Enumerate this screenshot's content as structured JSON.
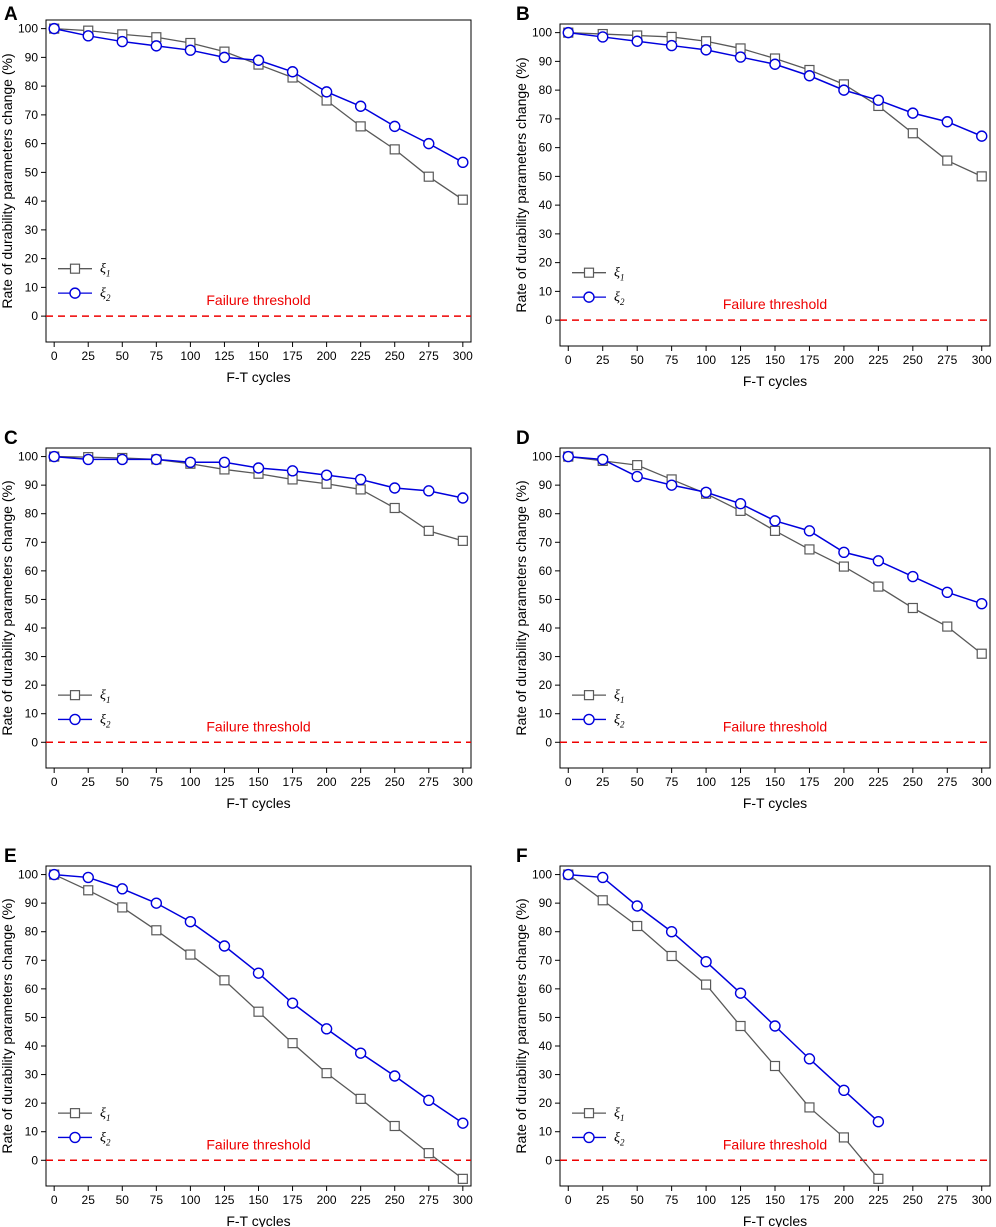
{
  "figure": {
    "title": ""
  },
  "colors": {
    "xi1": "#595959",
    "xi2": "#0000dd",
    "threshold": "#ee0000",
    "axis": "#000000"
  },
  "chart_data": [
    {
      "panel": "A",
      "type": "line",
      "xlabel": "F-T cycles",
      "ylabel": "Rate of durability parameters change (%)",
      "xlim": [
        -6,
        306
      ],
      "ylim": [
        -9,
        103
      ],
      "xticks": [
        0,
        25,
        50,
        75,
        100,
        125,
        150,
        175,
        200,
        225,
        250,
        275,
        300
      ],
      "yticks": [
        0,
        10,
        20,
        30,
        40,
        50,
        60,
        70,
        80,
        90,
        100
      ],
      "threshold": {
        "label": "Failure threshold",
        "value": 0
      },
      "legend": {
        "location": "lower-left",
        "entries": [
          "ξ1",
          "ξ2"
        ]
      },
      "series": [
        {
          "name": "ξ1",
          "marker": "square",
          "x": [
            0,
            25,
            50,
            75,
            100,
            125,
            150,
            175,
            200,
            225,
            250,
            275,
            300
          ],
          "values": [
            100,
            99.3,
            98,
            97,
            95,
            92,
            87.5,
            83,
            75,
            66,
            58,
            48.5,
            40.5
          ]
        },
        {
          "name": "ξ2",
          "marker": "circle",
          "x": [
            0,
            25,
            50,
            75,
            100,
            125,
            150,
            175,
            200,
            225,
            250,
            275,
            300
          ],
          "values": [
            100,
            97.5,
            95.5,
            94,
            92.5,
            90,
            89,
            85,
            78,
            73,
            66,
            60,
            53.5
          ]
        }
      ]
    },
    {
      "panel": "B",
      "type": "line",
      "xlabel": "F-T cycles",
      "ylabel": "Rate of durability parameters change (%)",
      "xlim": [
        -6,
        306
      ],
      "ylim": [
        -9,
        103
      ],
      "xticks": [
        0,
        25,
        50,
        75,
        100,
        125,
        150,
        175,
        200,
        225,
        250,
        275,
        300
      ],
      "yticks": [
        0,
        10,
        20,
        30,
        40,
        50,
        60,
        70,
        80,
        90,
        100
      ],
      "threshold": {
        "label": "Failure threshold",
        "value": 0
      },
      "legend": {
        "location": "lower-left",
        "entries": [
          "ξ1",
          "ξ2"
        ]
      },
      "series": [
        {
          "name": "ξ1",
          "marker": "square",
          "x": [
            0,
            25,
            50,
            75,
            100,
            125,
            150,
            175,
            200,
            225,
            250,
            275,
            300
          ],
          "values": [
            100,
            99.5,
            99,
            98.5,
            97,
            94.5,
            91,
            87,
            82,
            74.5,
            65,
            55.5,
            50
          ]
        },
        {
          "name": "ξ2",
          "marker": "circle",
          "x": [
            0,
            25,
            50,
            75,
            100,
            125,
            150,
            175,
            200,
            225,
            250,
            275,
            300
          ],
          "values": [
            100,
            98.5,
            97,
            95.5,
            94,
            91.5,
            89,
            85,
            80,
            76.5,
            72,
            69,
            64
          ]
        }
      ]
    },
    {
      "panel": "C",
      "type": "line",
      "xlabel": "F-T cycles",
      "ylabel": "Rate of durability parameters change (%)",
      "xlim": [
        -6,
        306
      ],
      "ylim": [
        -9,
        103
      ],
      "xticks": [
        0,
        25,
        50,
        75,
        100,
        125,
        150,
        175,
        200,
        225,
        250,
        275,
        300
      ],
      "yticks": [
        0,
        10,
        20,
        30,
        40,
        50,
        60,
        70,
        80,
        90,
        100
      ],
      "threshold": {
        "label": "Failure threshold",
        "value": 0
      },
      "legend": {
        "location": "lower-left",
        "entries": [
          "ξ1",
          "ξ2"
        ]
      },
      "series": [
        {
          "name": "ξ1",
          "marker": "square",
          "x": [
            0,
            25,
            50,
            75,
            100,
            125,
            150,
            175,
            200,
            225,
            250,
            275,
            300
          ],
          "values": [
            100,
            99.8,
            99.5,
            99,
            97.5,
            95.5,
            94,
            92,
            90.5,
            88.5,
            82,
            74,
            70.5
          ]
        },
        {
          "name": "ξ2",
          "marker": "circle",
          "x": [
            0,
            25,
            50,
            75,
            100,
            125,
            150,
            175,
            200,
            225,
            250,
            275,
            300
          ],
          "values": [
            100,
            99,
            99,
            99,
            98,
            98,
            96,
            95,
            93.5,
            92,
            89,
            88,
            85.5
          ]
        }
      ]
    },
    {
      "panel": "D",
      "type": "line",
      "xlabel": "F-T cycles",
      "ylabel": "Rate of durability parameters change (%)",
      "xlim": [
        -6,
        306
      ],
      "ylim": [
        -9,
        103
      ],
      "xticks": [
        0,
        25,
        50,
        75,
        100,
        125,
        150,
        175,
        200,
        225,
        250,
        275,
        300
      ],
      "yticks": [
        0,
        10,
        20,
        30,
        40,
        50,
        60,
        70,
        80,
        90,
        100
      ],
      "threshold": {
        "label": "Failure threshold",
        "value": 0
      },
      "legend": {
        "location": "lower-left",
        "entries": [
          "ξ1",
          "ξ2"
        ]
      },
      "series": [
        {
          "name": "ξ1",
          "marker": "square",
          "x": [
            0,
            25,
            50,
            75,
            100,
            125,
            150,
            175,
            200,
            225,
            250,
            275,
            300
          ],
          "values": [
            100,
            98.5,
            97,
            92,
            87,
            81,
            74,
            67.5,
            61.5,
            54.5,
            47,
            40.5,
            31
          ]
        },
        {
          "name": "ξ2",
          "marker": "circle",
          "x": [
            0,
            25,
            50,
            75,
            100,
            125,
            150,
            175,
            200,
            225,
            250,
            275,
            300
          ],
          "values": [
            100,
            99,
            93,
            90,
            87.5,
            83.5,
            77.5,
            74,
            66.5,
            63.5,
            58,
            52.5,
            48.5
          ]
        }
      ]
    },
    {
      "panel": "E",
      "type": "line",
      "xlabel": "F-T cycles",
      "ylabel": "Rate of durability parameters change (%)",
      "xlim": [
        -6,
        306
      ],
      "ylim": [
        -9,
        103
      ],
      "xticks": [
        0,
        25,
        50,
        75,
        100,
        125,
        150,
        175,
        200,
        225,
        250,
        275,
        300
      ],
      "yticks": [
        0,
        10,
        20,
        30,
        40,
        50,
        60,
        70,
        80,
        90,
        100
      ],
      "threshold": {
        "label": "Failure threshold",
        "value": 0
      },
      "legend": {
        "location": "lower-left",
        "entries": [
          "ξ1",
          "ξ2"
        ]
      },
      "series": [
        {
          "name": "ξ1",
          "marker": "square",
          "x": [
            0,
            25,
            50,
            75,
            100,
            125,
            150,
            175,
            200,
            225,
            250,
            275,
            300
          ],
          "values": [
            100,
            94.5,
            88.5,
            80.5,
            72,
            63,
            52,
            41,
            30.5,
            21.5,
            12,
            2.5,
            -6.5
          ]
        },
        {
          "name": "ξ2",
          "marker": "circle",
          "x": [
            0,
            25,
            50,
            75,
            100,
            125,
            150,
            175,
            200,
            225,
            250,
            275,
            300
          ],
          "values": [
            100,
            99,
            95,
            90,
            83.5,
            75,
            65.5,
            55,
            46,
            37.5,
            29.5,
            21,
            13
          ]
        }
      ]
    },
    {
      "panel": "F",
      "type": "line",
      "xlabel": "F-T cycles",
      "ylabel": "Rate of durability parameters change (%)",
      "xlim": [
        -6,
        306
      ],
      "ylim": [
        -9,
        103
      ],
      "xticks": [
        0,
        25,
        50,
        75,
        100,
        125,
        150,
        175,
        200,
        225,
        250,
        275,
        300
      ],
      "yticks": [
        0,
        10,
        20,
        30,
        40,
        50,
        60,
        70,
        80,
        90,
        100
      ],
      "threshold": {
        "label": "Failure threshold",
        "value": 0
      },
      "legend": {
        "location": "lower-left",
        "entries": [
          "ξ1",
          "ξ2"
        ]
      },
      "series": [
        {
          "name": "ξ1",
          "marker": "square",
          "x": [
            0,
            25,
            50,
            75,
            100,
            125,
            150,
            175,
            200,
            225
          ],
          "values": [
            100,
            91,
            82,
            71.5,
            61.5,
            47,
            33,
            18.5,
            8,
            -6.5
          ]
        },
        {
          "name": "ξ2",
          "marker": "circle",
          "x": [
            0,
            25,
            50,
            75,
            100,
            125,
            150,
            175,
            200,
            225
          ],
          "values": [
            100,
            99,
            89,
            80,
            69.5,
            58.5,
            47,
            35.5,
            24.5,
            13.5
          ]
        }
      ]
    }
  ]
}
